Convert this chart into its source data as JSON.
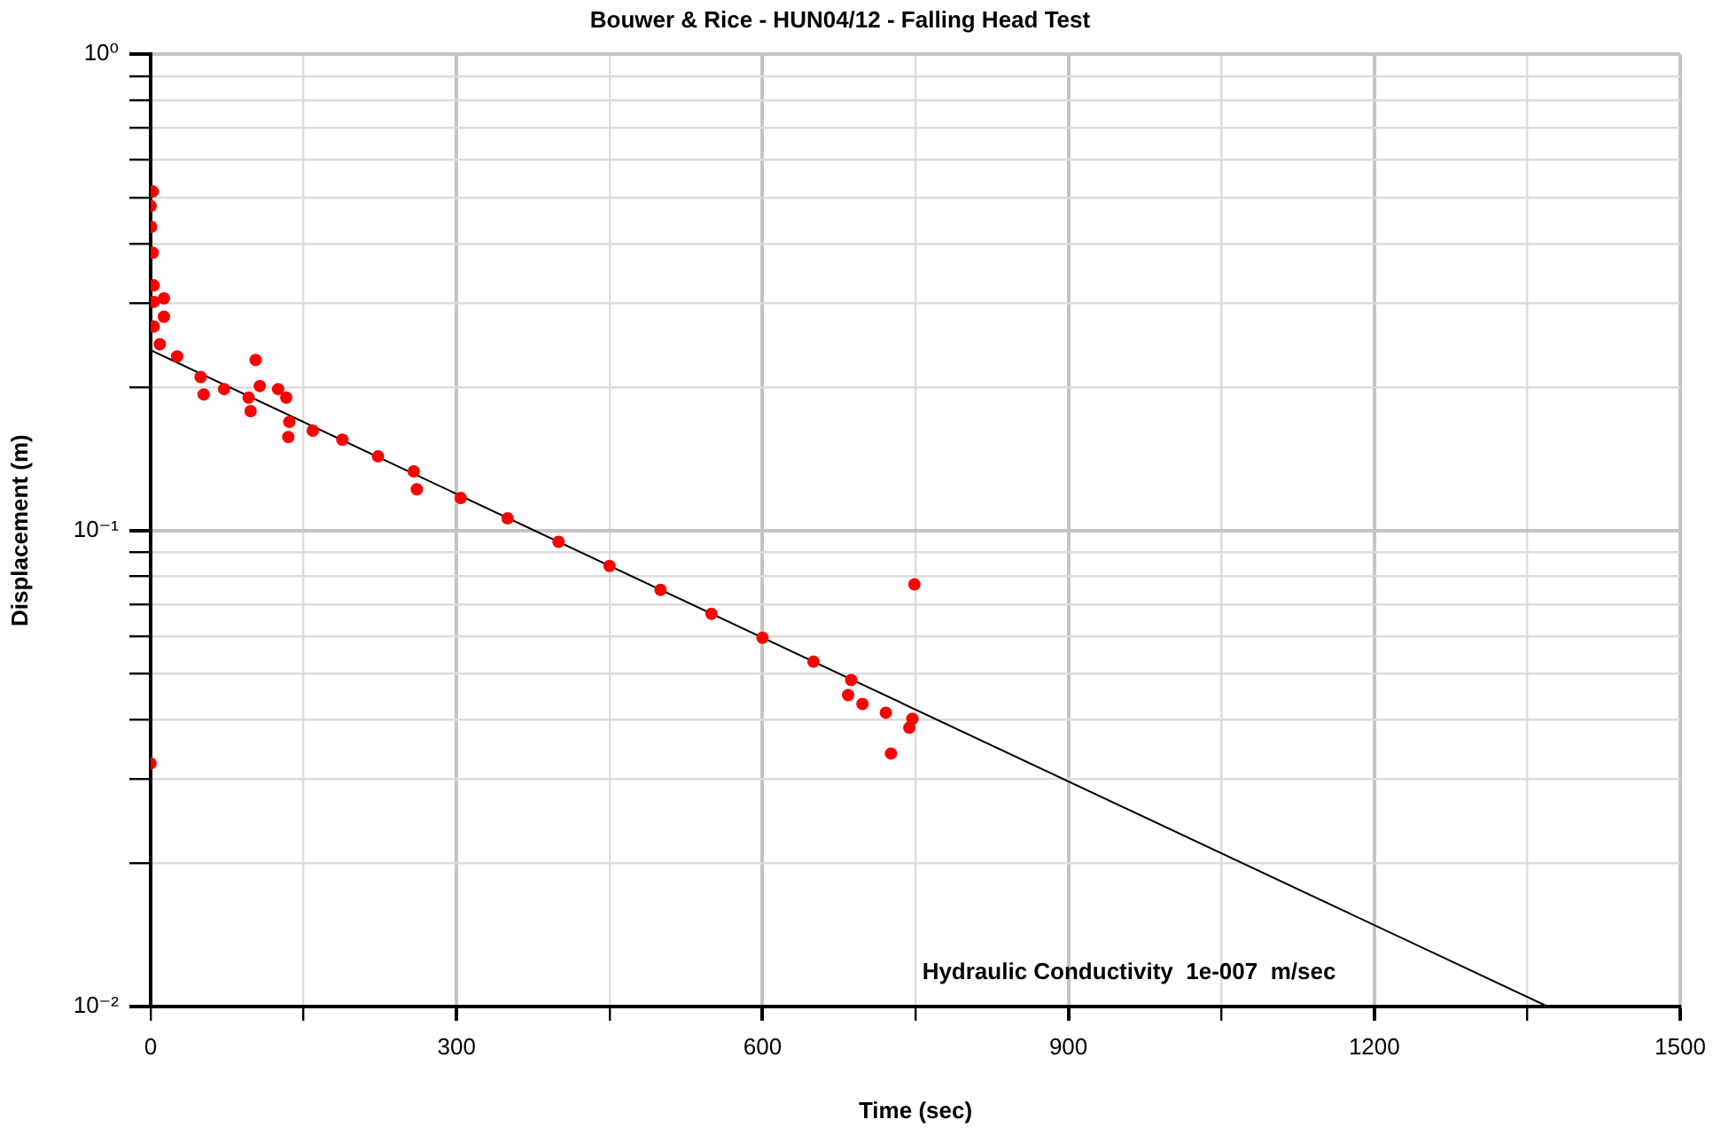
{
  "chart_data": {
    "type": "scatter",
    "title": "Bouwer & Rice - HUN04/12 - Falling Head Test",
    "xlabel": "Time (sec)",
    "ylabel": "Displacement (m)",
    "annotations": [
      "Hydraulic Conductivity  1e-007  m/sec"
    ],
    "log": "y",
    "grid": true,
    "legend": false,
    "xlim": [
      0,
      1500
    ],
    "xticks": [
      0,
      {
        "value": 150,
        "label": null
      },
      300,
      {
        "value": 450,
        "label": null
      },
      600,
      {
        "value": 750,
        "label": null
      },
      900,
      {
        "value": 1050,
        "label": null
      },
      1200,
      {
        "value": 1350,
        "label": null
      },
      1500
    ],
    "ylim": [
      0.01,
      1
    ],
    "yticks": [
      {
        "value": 0.01,
        "label": "10⁻²"
      },
      {
        "value": 0.02,
        "label": null
      },
      {
        "value": 0.03,
        "label": null
      },
      {
        "value": 0.04,
        "label": null
      },
      {
        "value": 0.05,
        "label": null
      },
      {
        "value": 0.06,
        "label": null
      },
      {
        "value": 0.07,
        "label": null
      },
      {
        "value": 0.08,
        "label": null
      },
      {
        "value": 0.09,
        "label": null
      },
      {
        "value": 0.1,
        "label": "10⁻¹"
      },
      {
        "value": 0.2,
        "label": null
      },
      {
        "value": 0.3,
        "label": null
      },
      {
        "value": 0.4,
        "label": null
      },
      {
        "value": 0.5,
        "label": null
      },
      {
        "value": 0.6,
        "label": null
      },
      {
        "value": 0.7,
        "label": null
      },
      {
        "value": 0.8,
        "label": null
      },
      {
        "value": 0.9,
        "label": null
      },
      {
        "value": 1,
        "label": "10⁰"
      }
    ],
    "series": [
      {
        "marker": "circle",
        "color": "#ff0000",
        "x": [
          2,
          0,
          0.5,
          2,
          3,
          0,
          3,
          13,
          13,
          3,
          9,
          26,
          49,
          52,
          72,
          96,
          98,
          103,
          107,
          125,
          133,
          135,
          136,
          159,
          188,
          223,
          258,
          261,
          304,
          350,
          400,
          450,
          500,
          550,
          600,
          650,
          684,
          687,
          698,
          721,
          726,
          744,
          747,
          749
        ],
        "values": [
          0.515,
          0.48,
          0.434,
          0.383,
          0.327,
          0.0324,
          0.302,
          0.307,
          0.281,
          0.268,
          0.246,
          0.232,
          0.21,
          0.193,
          0.198,
          0.19,
          0.178,
          0.228,
          0.201,
          0.198,
          0.19,
          0.157,
          0.169,
          0.162,
          0.155,
          0.143,
          0.133,
          0.122,
          0.117,
          0.106,
          0.0946,
          0.0842,
          0.075,
          0.0668,
          0.0595,
          0.053,
          0.0451,
          0.0485,
          0.0432,
          0.0414,
          0.034,
          0.0385,
          0.0402,
          0.077
        ]
      },
      {
        "type": "line",
        "marker": "none",
        "color": "#000000",
        "x": [
          0,
          1370
        ],
        "values": [
          0.239,
          0.01
        ]
      }
    ]
  }
}
